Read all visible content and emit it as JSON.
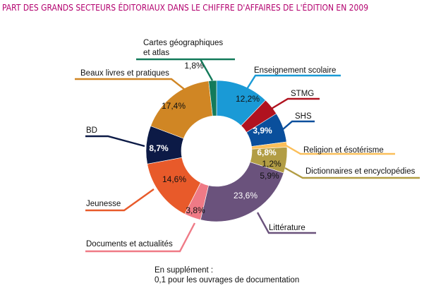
{
  "chart_data": {
    "type": "pie",
    "variant": "donut",
    "title": "PART DES GRANDS SECTEURS ÉDITORIAUX DANS LE CHIFFRE D'AFFAIRES DE L'ÉDITION EN 2009",
    "unit": "%",
    "start": "top",
    "direction": "clockwise",
    "slices": [
      {
        "label": "Enseignement scolaire",
        "value": 12.2,
        "value_label": "12,2%",
        "color": "#1a9ad6",
        "text_color": "#111111"
      },
      {
        "label": "STMG",
        "value": 3.9,
        "value_label": "3,9%",
        "color": "#b0121f",
        "text_color": "#ffffff"
      },
      {
        "label": "SHS",
        "value": 6.8,
        "value_label": "6,8%",
        "color": "#0a4f9c",
        "text_color": "#ffffff"
      },
      {
        "label": "Religion et ésotérisme",
        "value": 1.2,
        "value_label": "1,2%",
        "color": "#fbbf5a",
        "text_color": "#111111"
      },
      {
        "label": "Dictionnaires et encyclopédies",
        "value": 5.9,
        "value_label": "5,9%",
        "color": "#b29d44",
        "text_color": "#111111"
      },
      {
        "label": "Littérature",
        "value": 23.6,
        "value_label": "23,6%",
        "color": "#6a527c",
        "text_color": "#ffffff"
      },
      {
        "label": "Documents et actualités",
        "value": 3.8,
        "value_label": "3,8%",
        "color": "#ef7a86",
        "text_color": "#111111"
      },
      {
        "label": "Jeunesse",
        "value": 14.6,
        "value_label": "14,6%",
        "color": "#e85a2a",
        "text_color": "#111111"
      },
      {
        "label": "BD",
        "value": 8.7,
        "value_label": "8,7%",
        "color": "#0c1a46",
        "text_color": "#ffffff"
      },
      {
        "label": "Beaux livres et pratiques",
        "value": 17.4,
        "value_label": "17,4%",
        "color": "#d08624",
        "text_color": "#111111"
      },
      {
        "label": "Cartes géographiques et atlas",
        "value": 1.8,
        "value_label": "1,8%",
        "color": "#137a5a",
        "text_color": "#111111"
      }
    ],
    "note": [
      "En supplément :",
      "0,1 pour les ouvrages de documentation"
    ]
  },
  "colors": {
    "title": "#b3006e"
  }
}
